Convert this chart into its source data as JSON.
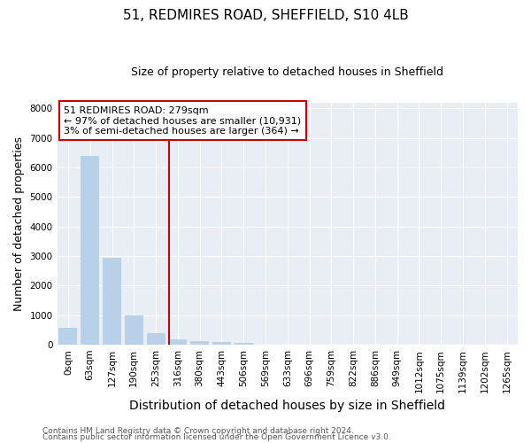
{
  "title1": "51, REDMIRES ROAD, SHEFFIELD, S10 4LB",
  "title2": "Size of property relative to detached houses in Sheffield",
  "xlabel": "Distribution of detached houses by size in Sheffield",
  "ylabel": "Number of detached properties",
  "annotation_line1": "51 REDMIRES ROAD: 279sqm",
  "annotation_line2": "← 97% of detached houses are smaller (10,931)",
  "annotation_line3": "3% of semi-detached houses are larger (364) →",
  "footer1": "Contains HM Land Registry data © Crown copyright and database right 2024.",
  "footer2": "Contains public sector information licensed under the Open Government Licence v3.0.",
  "bar_color": "#b8d0e8",
  "bar_edge_color": "#b8d0e8",
  "red_line_color": "#cc0000",
  "annotation_box_color": "#cc0000",
  "bg_color": "#e8eef4",
  "categories": [
    "0sqm",
    "63sqm",
    "127sqm",
    "190sqm",
    "253sqm",
    "316sqm",
    "380sqm",
    "443sqm",
    "506sqm",
    "569sqm",
    "633sqm",
    "696sqm",
    "759sqm",
    "822sqm",
    "886sqm",
    "949sqm",
    "1012sqm",
    "1075sqm",
    "1139sqm",
    "1202sqm",
    "1265sqm"
  ],
  "values": [
    560,
    6400,
    2950,
    1000,
    400,
    175,
    130,
    90,
    60,
    0,
    0,
    0,
    0,
    0,
    0,
    0,
    0,
    0,
    0,
    0,
    0
  ],
  "ylim": [
    0,
    8200
  ],
  "yticks": [
    0,
    1000,
    2000,
    3000,
    4000,
    5000,
    6000,
    7000,
    8000
  ],
  "red_line_x": 4.62,
  "grid_color": "#ffffff",
  "tick_fontsize": 7.5,
  "ylabel_fontsize": 9,
  "xlabel_fontsize": 10,
  "title1_fontsize": 11,
  "title2_fontsize": 9,
  "annotation_fontsize": 8,
  "footer_fontsize": 6.5,
  "footer_color": "#555555"
}
